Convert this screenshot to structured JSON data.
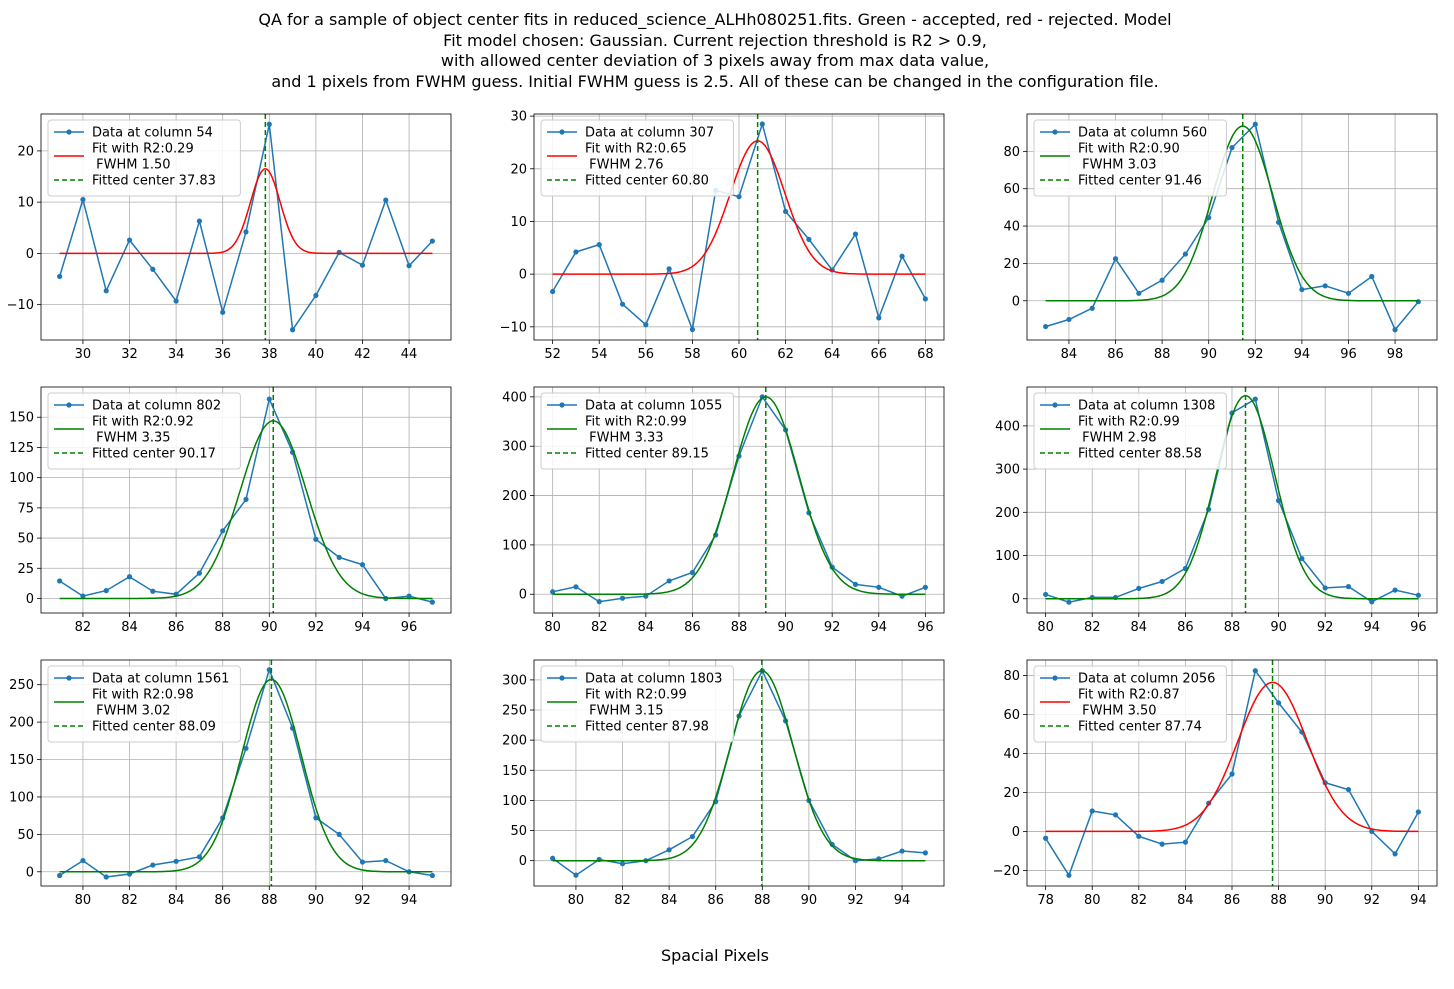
{
  "figure": {
    "title_lines": [
      "QA for a sample of object center fits in reduced_science_ALHh080251.fits. Green - accepted, red - rejected. Model",
      "Fit model chosen: Gaussian. Current rejection threshold is R2 > 0.9,",
      "with allowed center deviation of 3 pixels away from max data value,",
      "and 1 pixels from FWHM guess. Initial FWHM guess is 2.5. All of these can be changed in the configuration file."
    ],
    "xlabel": "Spacial Pixels"
  },
  "colors": {
    "data": "#1f77b4",
    "accepted": "#008000",
    "rejected": "#ff0000",
    "grid": "#b0b0b0"
  },
  "chart_data": [
    {
      "type": "line",
      "legend": {
        "data": "Data at column 54",
        "fit": "Fit with R2:0.29\n FWHM 1.50",
        "center": "Fitted center 37.83"
      },
      "status": "rejected",
      "x": [
        29,
        30,
        31,
        32,
        33,
        34,
        35,
        36,
        37,
        38,
        39,
        40,
        41,
        42,
        43,
        44,
        45
      ],
      "y": [
        -4.5,
        10.5,
        -7.3,
        2.6,
        -3.1,
        -9.3,
        6.3,
        -11.5,
        4.2,
        25.2,
        -14.9,
        -8.2,
        0.2,
        -2.3,
        10.4,
        -2.4,
        2.4
      ],
      "fit": {
        "amplitude": 16.5,
        "center": 37.83,
        "fwhm": 1.5,
        "offset": 0
      },
      "xlim": [
        28.2,
        45.8
      ],
      "ylim": [
        -16.9,
        27.2
      ],
      "xticks": [
        30,
        32,
        34,
        36,
        38,
        40,
        42,
        44
      ],
      "yticks": [
        -10,
        0,
        10,
        20
      ]
    },
    {
      "type": "line",
      "legend": {
        "data": "Data at column 307",
        "fit": "Fit with R2:0.65\n FWHM 2.76",
        "center": "Fitted center 60.80"
      },
      "status": "rejected",
      "x": [
        52,
        53,
        54,
        55,
        56,
        57,
        58,
        59,
        60,
        61,
        62,
        63,
        64,
        65,
        66,
        67,
        68
      ],
      "y": [
        -3.3,
        4.2,
        5.6,
        -5.7,
        -9.6,
        1.0,
        -10.5,
        15.9,
        14.7,
        28.5,
        11.9,
        6.6,
        0.8,
        7.6,
        -8.3,
        3.4,
        -4.7
      ],
      "fit": {
        "amplitude": 25.3,
        "center": 60.8,
        "fwhm": 2.76,
        "offset": 0
      },
      "xlim": [
        51.2,
        68.8
      ],
      "ylim": [
        -12.5,
        30.4
      ],
      "xticks": [
        52,
        54,
        56,
        58,
        60,
        62,
        64,
        66,
        68
      ],
      "yticks": [
        -10,
        0,
        10,
        20,
        30
      ]
    },
    {
      "type": "line",
      "legend": {
        "data": "Data at column 560",
        "fit": "Fit with R2:0.90\n FWHM 3.03",
        "center": "Fitted center 91.46"
      },
      "status": "accepted",
      "x": [
        83,
        84,
        85,
        86,
        87,
        88,
        89,
        90,
        91,
        92,
        93,
        94,
        95,
        96,
        97,
        98,
        99
      ],
      "y": [
        -13.8,
        -10.0,
        -4.0,
        22.5,
        4.0,
        11.0,
        25.0,
        44.5,
        82.0,
        94.5,
        42.0,
        6.0,
        8.0,
        4.0,
        13.0,
        -15.5,
        -0.5
      ],
      "fit": {
        "amplitude": 93.5,
        "center": 91.46,
        "fwhm": 3.03,
        "offset": 0
      },
      "xlim": [
        82.2,
        99.8
      ],
      "ylim": [
        -21,
        100
      ],
      "xticks": [
        84,
        86,
        88,
        90,
        92,
        94,
        96,
        98
      ],
      "yticks": [
        0,
        20,
        40,
        60,
        80
      ]
    },
    {
      "type": "line",
      "legend": {
        "data": "Data at column 802",
        "fit": "Fit with R2:0.92\n FWHM 3.35",
        "center": "Fitted center 90.17"
      },
      "status": "accepted",
      "x": [
        81,
        82,
        83,
        84,
        85,
        86,
        87,
        88,
        89,
        90,
        91,
        92,
        93,
        94,
        95,
        96,
        97
      ],
      "y": [
        14.5,
        2.0,
        6.5,
        18.0,
        6.0,
        3.5,
        21.0,
        56.0,
        82.0,
        165.0,
        121.0,
        49.0,
        34.0,
        28.0,
        0.0,
        2.0,
        -3.0
      ],
      "fit": {
        "amplitude": 147,
        "center": 90.17,
        "fwhm": 3.35,
        "offset": 0
      },
      "xlim": [
        80.2,
        97.8
      ],
      "ylim": [
        -12,
        175
      ],
      "xticks": [
        82,
        84,
        86,
        88,
        90,
        92,
        94,
        96
      ],
      "yticks": [
        0,
        25,
        50,
        75,
        100,
        125,
        150
      ]
    },
    {
      "type": "line",
      "legend": {
        "data": "Data at column 1055",
        "fit": "Fit with R2:0.99\n FWHM 3.33",
        "center": "Fitted center 89.15"
      },
      "status": "accepted",
      "x": [
        80,
        81,
        82,
        83,
        84,
        85,
        86,
        87,
        88,
        89,
        90,
        91,
        92,
        93,
        94,
        95,
        96
      ],
      "y": [
        5,
        15,
        -15,
        -8,
        -4,
        27,
        44,
        120,
        280,
        400,
        333,
        165,
        55,
        20,
        14,
        -4,
        14
      ],
      "fit": {
        "amplitude": 400,
        "center": 89.15,
        "fwhm": 3.33,
        "offset": 0
      },
      "xlim": [
        79.2,
        96.8
      ],
      "ylim": [
        -38,
        420
      ],
      "xticks": [
        80,
        82,
        84,
        86,
        88,
        90,
        92,
        94,
        96
      ],
      "yticks": [
        0,
        100,
        200,
        300,
        400
      ]
    },
    {
      "type": "line",
      "legend": {
        "data": "Data at column 1308",
        "fit": "Fit with R2:0.99\n FWHM 2.98",
        "center": "Fitted center 88.58"
      },
      "status": "accepted",
      "x": [
        80,
        81,
        82,
        83,
        84,
        85,
        86,
        87,
        88,
        89,
        90,
        91,
        92,
        93,
        94,
        95,
        96
      ],
      "y": [
        10,
        -8,
        3,
        3,
        24,
        40,
        70,
        207,
        430,
        462,
        227,
        93,
        25,
        28,
        -7,
        20,
        8
      ],
      "fit": {
        "amplitude": 470,
        "center": 88.58,
        "fwhm": 2.98,
        "offset": 0
      },
      "xlim": [
        79.2,
        96.8
      ],
      "ylim": [
        -33,
        490
      ],
      "xticks": [
        80,
        82,
        84,
        86,
        88,
        90,
        92,
        94,
        96
      ],
      "yticks": [
        0,
        100,
        200,
        300,
        400
      ]
    },
    {
      "type": "line",
      "legend": {
        "data": "Data at column 1561",
        "fit": "Fit with R2:0.98\n FWHM 3.02",
        "center": "Fitted center 88.09"
      },
      "status": "accepted",
      "x": [
        79,
        80,
        81,
        82,
        83,
        84,
        85,
        86,
        87,
        88,
        89,
        90,
        91,
        92,
        93,
        94,
        95
      ],
      "y": [
        -5,
        15,
        -7,
        -3,
        9,
        14,
        20,
        72,
        165,
        270,
        192,
        72,
        50,
        13,
        15,
        0,
        -5
      ],
      "fit": {
        "amplitude": 257,
        "center": 88.09,
        "fwhm": 3.02,
        "offset": 0
      },
      "xlim": [
        78.2,
        95.8
      ],
      "ylim": [
        -19,
        283
      ],
      "xticks": [
        80,
        82,
        84,
        86,
        88,
        90,
        92,
        94
      ],
      "yticks": [
        0,
        50,
        100,
        150,
        200,
        250
      ]
    },
    {
      "type": "line",
      "legend": {
        "data": "Data at column 1803",
        "fit": "Fit with R2:0.99\n FWHM 3.15",
        "center": "Fitted center 87.98"
      },
      "status": "accepted",
      "x": [
        79,
        80,
        81,
        82,
        83,
        84,
        85,
        86,
        87,
        88,
        89,
        90,
        91,
        92,
        93,
        94,
        95
      ],
      "y": [
        4,
        -24,
        2,
        -5,
        0,
        18,
        40,
        98,
        240,
        315,
        232,
        100,
        27,
        0,
        3,
        16,
        13
      ],
      "fit": {
        "amplitude": 315,
        "center": 87.98,
        "fwhm": 3.15,
        "offset": 0
      },
      "xlim": [
        78.2,
        95.8
      ],
      "ylim": [
        -42,
        333
      ],
      "xticks": [
        80,
        82,
        84,
        86,
        88,
        90,
        92,
        94
      ],
      "yticks": [
        0,
        50,
        100,
        150,
        200,
        250,
        300
      ]
    },
    {
      "type": "line",
      "legend": {
        "data": "Data at column 2056",
        "fit": "Fit with R2:0.87\n FWHM 3.50",
        "center": "Fitted center 87.74"
      },
      "status": "rejected",
      "x": [
        78,
        79,
        80,
        81,
        82,
        83,
        84,
        85,
        86,
        87,
        88,
        89,
        90,
        91,
        92,
        93,
        94
      ],
      "y": [
        -3.5,
        -22.5,
        10.5,
        8.5,
        -2.5,
        -6.5,
        -5.5,
        14.5,
        29.5,
        82.5,
        66,
        51,
        25,
        21.5,
        0,
        -11.5,
        10
      ],
      "fit": {
        "amplitude": 76.5,
        "center": 87.74,
        "fwhm": 3.5,
        "offset": 0
      },
      "xlim": [
        77.2,
        94.8
      ],
      "ylim": [
        -28,
        88
      ],
      "xticks": [
        78,
        80,
        82,
        84,
        86,
        88,
        90,
        92,
        94
      ],
      "yticks": [
        -20,
        0,
        20,
        40,
        60,
        80
      ]
    }
  ]
}
